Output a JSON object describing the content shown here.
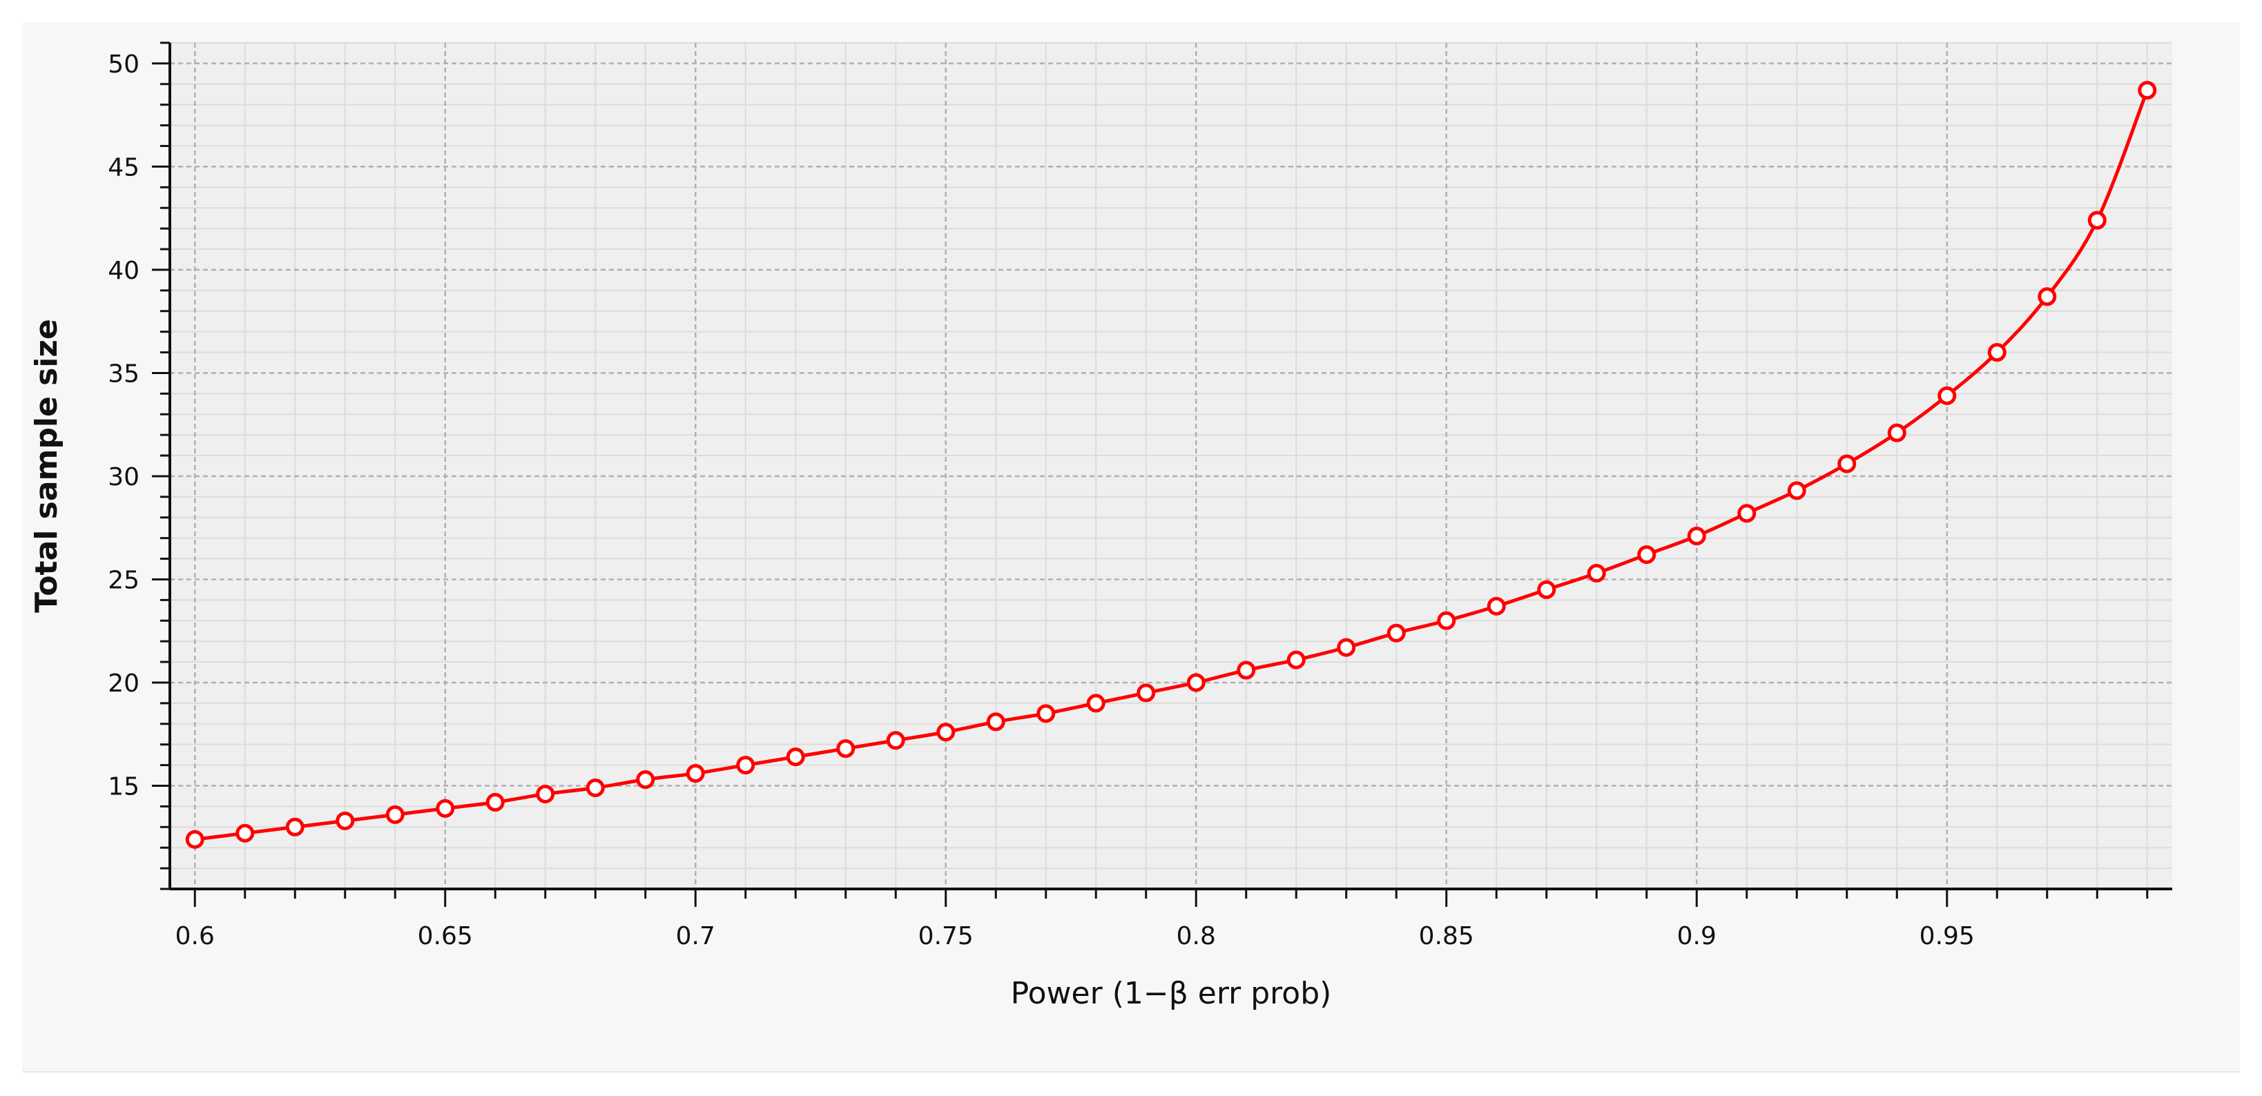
{
  "chart_data": {
    "type": "line",
    "title": "",
    "xlabel": "Power (1−β err prob)",
    "ylabel": "Total sample size",
    "xlim": [
      0.595,
      0.995
    ],
    "ylim": [
      10,
      51
    ],
    "x_ticks": [
      0.6,
      0.65,
      0.7,
      0.75,
      0.8,
      0.85,
      0.9,
      0.95
    ],
    "x_tick_labels": [
      "0.6",
      "0.65",
      "0.7",
      "0.75",
      "0.8",
      "0.85",
      "0.9",
      "0.95"
    ],
    "x_minor_step": 0.01,
    "y_ticks": [
      15,
      20,
      25,
      30,
      35,
      40,
      45,
      50
    ],
    "y_tick_labels": [
      "15",
      "20",
      "25",
      "30",
      "35",
      "40",
      "45",
      "50"
    ],
    "y_minor_step": 1,
    "grid": true,
    "legend": "none",
    "series": [
      {
        "color": "#ff0000",
        "marker": "open-circle",
        "x": [
          0.6,
          0.61,
          0.62,
          0.63,
          0.64,
          0.65,
          0.66,
          0.67,
          0.68,
          0.69,
          0.7,
          0.71,
          0.72,
          0.73,
          0.74,
          0.75,
          0.76,
          0.77,
          0.78,
          0.79,
          0.8,
          0.81,
          0.82,
          0.83,
          0.84,
          0.85,
          0.86,
          0.87,
          0.88,
          0.89,
          0.9,
          0.91,
          0.92,
          0.93,
          0.94,
          0.95,
          0.96,
          0.97,
          0.98,
          0.99
        ],
        "y": [
          12.4,
          12.7,
          13.0,
          13.3,
          13.6,
          13.9,
          14.2,
          14.6,
          14.9,
          15.3,
          15.6,
          16.0,
          16.4,
          16.8,
          17.2,
          17.6,
          18.1,
          18.5,
          19.0,
          19.5,
          20.0,
          20.6,
          21.1,
          21.7,
          22.4,
          23.0,
          23.7,
          24.5,
          25.3,
          26.2,
          27.1,
          28.2,
          29.3,
          30.6,
          32.1,
          33.9,
          36.0,
          38.7,
          42.4,
          48.7
        ]
      }
    ]
  },
  "colors": {
    "plot_background": "#efefef",
    "panel_background": "#f7f7f7",
    "major_grid": "#b0b0b0",
    "minor_grid": "#dcdcdc",
    "axis": "#111111",
    "series_line": "#ff0000",
    "marker_fill": "#ffffff"
  }
}
